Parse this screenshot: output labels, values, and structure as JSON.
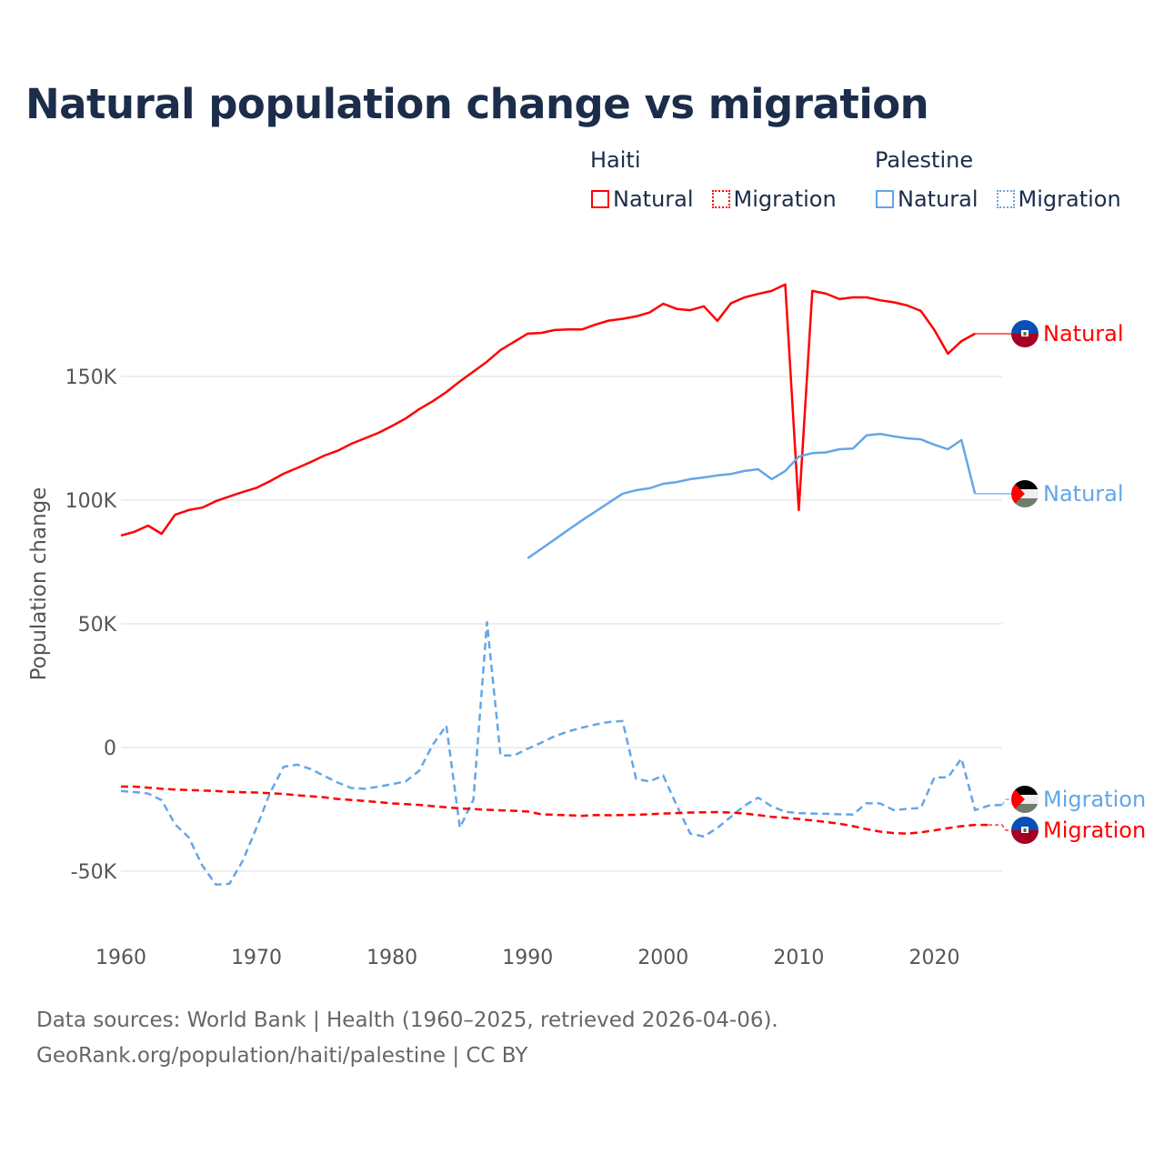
{
  "chart_data": {
    "type": "line",
    "title": "Natural population change vs migration",
    "xlabel": "",
    "ylabel": "Population change",
    "xlim": [
      1960,
      2025
    ],
    "ylim": [
      -75000,
      200000
    ],
    "yticks": [
      150000,
      100000,
      50000,
      0,
      -50000
    ],
    "ytick_labels": [
      "150K",
      "100K",
      "50K",
      "0",
      "-50K"
    ],
    "xticks": [
      1960,
      1970,
      1980,
      1990,
      2000,
      2010,
      2020
    ],
    "xtick_labels": [
      "1960",
      "1970",
      "1980",
      "1990",
      "2000",
      "2010",
      "2020"
    ],
    "grid": true,
    "legend_placement": "top-right",
    "legend_groups": [
      {
        "name": "Haiti",
        "items": [
          "Natural",
          "Migration"
        ]
      },
      {
        "name": "Palestine",
        "items": [
          "Natural",
          "Migration"
        ]
      }
    ],
    "series": [
      {
        "name": "Haiti Natural",
        "country": "Haiti",
        "kind": "Natural",
        "label": "Natural",
        "color": "#ff0000",
        "dashed": false,
        "start": 1960,
        "values": [
          85700,
          87200,
          89700,
          86400,
          94100,
          96000,
          97000,
          99600,
          101500,
          103300,
          105000,
          107700,
          110700,
          113000,
          115400,
          118000,
          120000,
          122800,
          125000,
          127200,
          130000,
          133000,
          136800,
          140000,
          143700,
          148000,
          152000,
          156000,
          160700,
          164000,
          167300,
          167600,
          168800,
          169000,
          169000,
          171000,
          172600,
          173300,
          174300,
          175900,
          179400,
          177300,
          176800,
          178400,
          172500,
          179600,
          182000,
          183400,
          184600,
          187200,
          96000,
          184600,
          183500,
          181300,
          182000,
          182000,
          180800,
          180000,
          178700,
          176500,
          168800,
          159200,
          164300,
          167300
        ]
      },
      {
        "name": "Palestine Natural",
        "country": "Palestine",
        "kind": "Natural",
        "label": "Natural",
        "color": "#64a6e8",
        "dashed": false,
        "start": 1990,
        "values": [
          76500,
          80300,
          84100,
          88000,
          91800,
          95400,
          99000,
          102600,
          104000,
          104800,
          106600,
          107300,
          108500,
          109200,
          110000,
          110600,
          111800,
          112500,
          108500,
          111800,
          117600,
          119000,
          119300,
          120600,
          120900,
          126200,
          126800,
          125800,
          125000,
          124600,
          122400,
          120600,
          124300,
          102600
        ]
      },
      {
        "name": "Palestine Migration",
        "country": "Palestine",
        "kind": "Migration",
        "label": "Migration",
        "color": "#64a6e8",
        "dashed": true,
        "start": 1960,
        "values": [
          -17600,
          -18000,
          -18600,
          -21300,
          -31100,
          -36300,
          -47700,
          -55400,
          -55100,
          -45600,
          -32400,
          -18300,
          -7800,
          -6900,
          -8700,
          -11500,
          -14200,
          -16400,
          -16700,
          -15800,
          -14800,
          -13700,
          -9400,
          1100,
          8900,
          -32400,
          -21100,
          50700,
          -3200,
          -3200,
          -500,
          1900,
          4600,
          6500,
          8000,
          9300,
          10300,
          10700,
          -12700,
          -13700,
          -11300,
          -23500,
          -34800,
          -36000,
          -32500,
          -28000,
          -23500,
          -20300,
          -23800,
          -26000,
          -26500,
          -26700,
          -26800,
          -27000,
          -27100,
          -22500,
          -22600,
          -25300,
          -24800,
          -24400,
          -12100,
          -12100,
          -4400,
          -25300,
          -23500,
          -23200
        ]
      },
      {
        "name": "Haiti Migration",
        "country": "Haiti",
        "kind": "Migration",
        "label": "Migration",
        "color": "#ff0000",
        "dashed": true,
        "start": 1960,
        "values": [
          -15800,
          -15800,
          -16200,
          -16700,
          -17000,
          -17200,
          -17400,
          -17600,
          -17900,
          -18100,
          -18200,
          -18500,
          -18800,
          -19300,
          -19700,
          -20100,
          -20800,
          -21200,
          -21600,
          -22100,
          -22600,
          -22900,
          -23200,
          -23700,
          -24200,
          -24600,
          -24900,
          -25200,
          -25400,
          -25600,
          -25900,
          -27000,
          -27200,
          -27400,
          -27600,
          -27300,
          -27400,
          -27300,
          -27200,
          -27000,
          -26700,
          -26500,
          -26300,
          -26200,
          -26100,
          -26300,
          -26700,
          -27300,
          -28000,
          -28400,
          -28900,
          -29500,
          -30100,
          -30800,
          -31800,
          -33000,
          -34000,
          -34600,
          -34800,
          -34300,
          -33500,
          -32600,
          -31800,
          -31300,
          -31300
        ]
      }
    ]
  },
  "legend": {
    "groups": [
      {
        "title": "Haiti",
        "natural": "Natural",
        "migration": "Migration",
        "color": "#ff0000"
      },
      {
        "title": "Palestine",
        "natural": "Natural",
        "migration": "Migration",
        "color": "#64a6e8"
      }
    ]
  },
  "icons": {
    "haiti": "haiti-flag-icon",
    "palestine": "palestine-flag-icon"
  },
  "footer": {
    "sources": "Data sources: World Bank | Health (1960–2025, retrieved 2026-04-06).",
    "credit": "GeoRank.org/population/haiti/palestine | CC BY"
  }
}
